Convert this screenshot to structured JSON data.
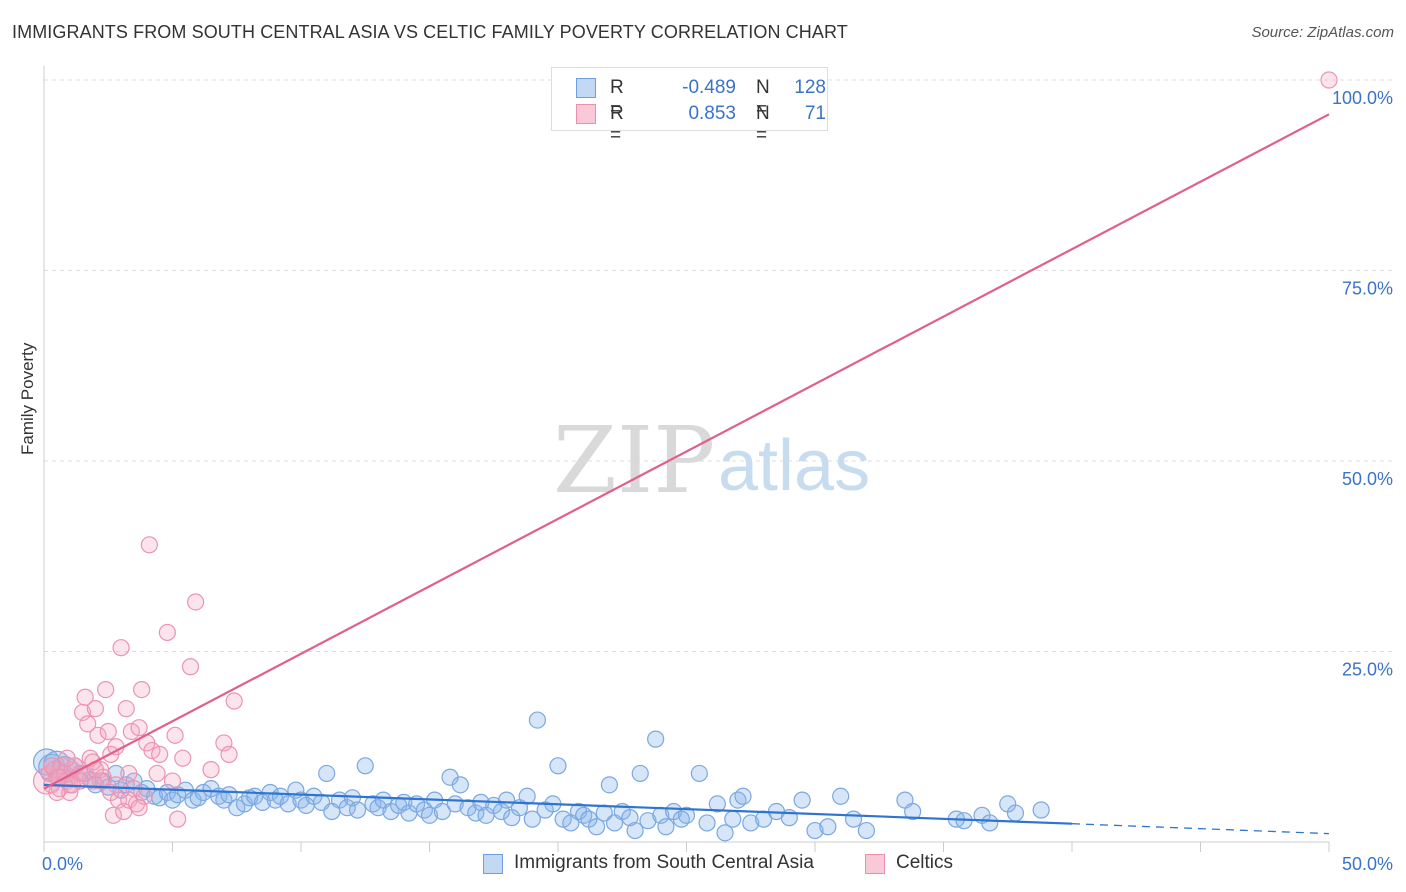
{
  "title": "IMMIGRANTS FROM SOUTH CENTRAL ASIA VS CELTIC FAMILY POVERTY CORRELATION CHART",
  "source": "Source: ZipAtlas.com",
  "watermark": {
    "zip": "ZIP",
    "atlas": "atlas"
  },
  "chart_data": {
    "type": "scatter",
    "title": "IMMIGRANTS FROM SOUTH CENTRAL ASIA VS CELTIC FAMILY POVERTY CORRELATION CHART",
    "xlabel": "",
    "ylabel": "Family Poverty",
    "xlim": [
      0,
      50
    ],
    "ylim": [
      0,
      100
    ],
    "x_tick_labels": [
      "0.0%",
      "50.0%"
    ],
    "y_tick_labels": [
      "25.0%",
      "50.0%",
      "75.0%",
      "100.0%"
    ],
    "y_ticks": [
      25,
      50,
      75,
      100
    ],
    "legend": [
      {
        "name": "Immigrants from South Central Asia",
        "R_label": "R =",
        "R": "-0.489",
        "N_label": "N =",
        "N": "128",
        "color": "#8ab4e8",
        "line_color": "#2e74d0"
      },
      {
        "name": "Celtics",
        "R_label": "R =",
        "R": "0.853",
        "N_label": "N =",
        "N": "71",
        "color": "#f4a6c0",
        "line_color": "#e0608a"
      }
    ],
    "series": [
      {
        "name": "Immigrants from South Central Asia",
        "trend": {
          "x0": 0,
          "y0": 7.5,
          "x1": 40,
          "y1": 2.4,
          "dash_x1": 50,
          "dash_y1": 1.1
        },
        "points": [
          [
            0.1,
            10.5,
            1
          ],
          [
            0.3,
            9.8,
            1
          ],
          [
            0.5,
            10.2,
            1
          ],
          [
            0.8,
            9.5,
            1
          ],
          [
            1.0,
            8.5,
            0
          ],
          [
            1.2,
            10.0,
            0
          ],
          [
            1.5,
            9.0,
            0
          ],
          [
            1.8,
            8.2,
            0
          ],
          [
            2.0,
            7.5,
            0
          ],
          [
            2.3,
            8.0,
            0
          ],
          [
            2.5,
            7.2,
            0
          ],
          [
            2.8,
            9.0,
            0
          ],
          [
            3.0,
            6.8,
            0
          ],
          [
            3.2,
            7.5,
            0
          ],
          [
            3.5,
            8.0,
            0
          ],
          [
            3.8,
            6.5,
            0
          ],
          [
            4.0,
            7.0,
            0
          ],
          [
            4.3,
            6.0,
            0
          ],
          [
            4.5,
            5.8,
            0
          ],
          [
            4.8,
            6.5,
            0
          ],
          [
            5.0,
            5.5,
            0
          ],
          [
            5.2,
            6.2,
            0
          ],
          [
            5.5,
            6.8,
            0
          ],
          [
            5.8,
            5.5,
            0
          ],
          [
            6.0,
            5.8,
            0
          ],
          [
            6.2,
            6.5,
            0
          ],
          [
            6.5,
            7.0,
            0
          ],
          [
            6.8,
            6.0,
            0
          ],
          [
            7.0,
            5.5,
            0
          ],
          [
            7.2,
            6.2,
            0
          ],
          [
            7.5,
            4.5,
            0
          ],
          [
            7.8,
            5.0,
            0
          ],
          [
            8.0,
            5.8,
            0
          ],
          [
            8.2,
            6.0,
            0
          ],
          [
            8.5,
            5.2,
            0
          ],
          [
            8.8,
            6.5,
            0
          ],
          [
            9.0,
            5.5,
            0
          ],
          [
            9.2,
            6.0,
            0
          ],
          [
            9.5,
            5.0,
            0
          ],
          [
            9.8,
            6.8,
            0
          ],
          [
            10.0,
            5.5,
            0
          ],
          [
            10.2,
            4.8,
            0
          ],
          [
            10.5,
            6.0,
            0
          ],
          [
            10.8,
            5.2,
            0
          ],
          [
            11.0,
            9.0,
            0
          ],
          [
            11.2,
            4.0,
            0
          ],
          [
            11.5,
            5.5,
            0
          ],
          [
            11.8,
            4.5,
            0
          ],
          [
            12.0,
            5.8,
            0
          ],
          [
            12.2,
            4.2,
            0
          ],
          [
            12.5,
            10.0,
            0
          ],
          [
            12.8,
            5.0,
            0
          ],
          [
            13.0,
            4.5,
            0
          ],
          [
            13.2,
            5.5,
            0
          ],
          [
            13.5,
            4.0,
            0
          ],
          [
            13.8,
            4.8,
            0
          ],
          [
            14.0,
            5.2,
            0
          ],
          [
            14.2,
            3.8,
            0
          ],
          [
            14.5,
            5.0,
            0
          ],
          [
            14.8,
            4.2,
            0
          ],
          [
            15.0,
            3.5,
            0
          ],
          [
            15.2,
            5.5,
            0
          ],
          [
            15.5,
            4.0,
            0
          ],
          [
            15.8,
            8.5,
            0
          ],
          [
            16.0,
            5.0,
            0
          ],
          [
            16.2,
            7.5,
            0
          ],
          [
            16.5,
            4.5,
            0
          ],
          [
            16.8,
            3.8,
            0
          ],
          [
            17.0,
            5.2,
            0
          ],
          [
            17.2,
            3.5,
            0
          ],
          [
            17.5,
            4.8,
            0
          ],
          [
            17.8,
            4.0,
            0
          ],
          [
            18.0,
            5.5,
            0
          ],
          [
            18.2,
            3.2,
            0
          ],
          [
            18.5,
            4.5,
            0
          ],
          [
            18.8,
            6.0,
            0
          ],
          [
            19.0,
            3.0,
            0
          ],
          [
            19.2,
            16.0,
            0
          ],
          [
            19.5,
            4.2,
            0
          ],
          [
            19.8,
            5.0,
            0
          ],
          [
            20.0,
            10.0,
            0
          ],
          [
            20.2,
            3.0,
            0
          ],
          [
            20.5,
            2.5,
            0
          ],
          [
            20.8,
            4.0,
            0
          ],
          [
            21.0,
            3.5,
            0
          ],
          [
            21.2,
            3.0,
            0
          ],
          [
            21.5,
            2.0,
            0
          ],
          [
            21.8,
            3.8,
            0
          ],
          [
            22.0,
            7.5,
            0
          ],
          [
            22.2,
            2.5,
            0
          ],
          [
            22.5,
            4.0,
            0
          ],
          [
            22.8,
            3.2,
            0
          ],
          [
            23.0,
            1.5,
            0
          ],
          [
            23.2,
            9.0,
            0
          ],
          [
            23.5,
            2.8,
            0
          ],
          [
            23.8,
            13.5,
            0
          ],
          [
            24.0,
            3.5,
            0
          ],
          [
            24.2,
            2.0,
            0
          ],
          [
            24.5,
            4.0,
            0
          ],
          [
            24.8,
            3.0,
            0
          ],
          [
            25.0,
            3.5,
            0
          ],
          [
            25.5,
            9.0,
            0
          ],
          [
            25.8,
            2.5,
            0
          ],
          [
            26.2,
            5.0,
            0
          ],
          [
            26.5,
            1.2,
            0
          ],
          [
            26.8,
            3.0,
            0
          ],
          [
            27.0,
            5.5,
            0
          ],
          [
            27.2,
            6.0,
            0
          ],
          [
            27.5,
            2.5,
            0
          ],
          [
            28.0,
            3.0,
            0
          ],
          [
            28.5,
            4.0,
            0
          ],
          [
            29.0,
            3.2,
            0
          ],
          [
            29.5,
            5.5,
            0
          ],
          [
            30.0,
            1.5,
            0
          ],
          [
            30.5,
            2.0,
            0
          ],
          [
            31.0,
            6.0,
            0
          ],
          [
            31.5,
            3.0,
            0
          ],
          [
            32.0,
            1.5,
            0
          ],
          [
            33.5,
            5.5,
            0
          ],
          [
            33.8,
            4.0,
            0
          ],
          [
            35.5,
            3.0,
            0
          ],
          [
            35.8,
            2.8,
            0
          ],
          [
            36.5,
            3.5,
            0
          ],
          [
            36.8,
            2.5,
            0
          ],
          [
            37.5,
            5.0,
            0
          ],
          [
            37.8,
            3.8,
            0
          ],
          [
            38.8,
            4.2,
            0
          ]
        ]
      },
      {
        "name": "Celtics",
        "trend": {
          "x0": 0,
          "y0": 7.0,
          "x1": 50,
          "y1": 95.5
        },
        "points": [
          [
            0.1,
            8.0,
            1
          ],
          [
            0.2,
            9.0,
            0
          ],
          [
            0.3,
            7.5,
            0
          ],
          [
            0.4,
            9.5,
            0
          ],
          [
            0.5,
            8.5,
            0
          ],
          [
            0.6,
            7.0,
            0
          ],
          [
            0.7,
            10.0,
            0
          ],
          [
            0.8,
            9.0,
            0
          ],
          [
            0.9,
            8.0,
            0
          ],
          [
            1.0,
            7.5,
            0
          ],
          [
            1.1,
            9.5,
            0
          ],
          [
            1.2,
            10.0,
            0
          ],
          [
            1.3,
            8.5,
            0
          ],
          [
            1.4,
            9.0,
            0
          ],
          [
            1.5,
            17.0,
            0
          ],
          [
            1.6,
            19.0,
            0
          ],
          [
            1.7,
            15.5,
            0
          ],
          [
            1.8,
            11.0,
            0
          ],
          [
            1.9,
            8.0,
            0
          ],
          [
            2.0,
            17.5,
            0
          ],
          [
            2.1,
            14.0,
            0
          ],
          [
            2.2,
            9.5,
            0
          ],
          [
            2.3,
            8.5,
            0
          ],
          [
            2.4,
            20.0,
            0
          ],
          [
            2.5,
            14.5,
            0
          ],
          [
            2.6,
            11.5,
            0
          ],
          [
            2.7,
            3.5,
            0
          ],
          [
            2.8,
            12.5,
            0
          ],
          [
            2.9,
            5.5,
            0
          ],
          [
            3.0,
            25.5,
            0
          ],
          [
            3.1,
            4.0,
            0
          ],
          [
            3.2,
            17.5,
            0
          ],
          [
            3.3,
            9.0,
            0
          ],
          [
            3.4,
            14.5,
            0
          ],
          [
            3.5,
            7.0,
            0
          ],
          [
            3.6,
            5.0,
            0
          ],
          [
            3.7,
            15.0,
            0
          ],
          [
            3.8,
            20.0,
            0
          ],
          [
            3.9,
            6.0,
            0
          ],
          [
            4.0,
            13.0,
            0
          ],
          [
            4.1,
            39.0,
            0
          ],
          [
            4.2,
            12.0,
            0
          ],
          [
            4.5,
            11.5,
            0
          ],
          [
            4.8,
            27.5,
            0
          ],
          [
            5.0,
            8.0,
            0
          ],
          [
            5.1,
            14.0,
            0
          ],
          [
            5.2,
            3.0,
            0
          ],
          [
            5.4,
            11.0,
            0
          ],
          [
            5.7,
            23.0,
            0
          ],
          [
            5.9,
            31.5,
            0
          ],
          [
            6.5,
            9.5,
            0
          ],
          [
            7.0,
            13.0,
            0
          ],
          [
            7.2,
            11.5,
            0
          ],
          [
            7.4,
            18.5,
            0
          ],
          [
            1.0,
            6.5,
            0
          ],
          [
            2.2,
            8.0,
            0
          ],
          [
            0.5,
            6.5,
            0
          ],
          [
            1.6,
            9.0,
            0
          ],
          [
            2.8,
            7.5,
            0
          ],
          [
            3.3,
            5.5,
            0
          ],
          [
            0.9,
            11.0,
            0
          ],
          [
            1.9,
            10.5,
            0
          ],
          [
            0.3,
            10.0,
            0
          ],
          [
            1.4,
            8.0,
            0
          ],
          [
            2.6,
            6.5,
            0
          ],
          [
            3.7,
            4.5,
            0
          ],
          [
            4.4,
            9.0,
            0
          ],
          [
            0.6,
            8.5,
            0
          ],
          [
            1.1,
            7.5,
            0
          ],
          [
            2.0,
            9.5,
            0
          ],
          [
            50.0,
            100.0,
            0
          ]
        ]
      }
    ]
  }
}
